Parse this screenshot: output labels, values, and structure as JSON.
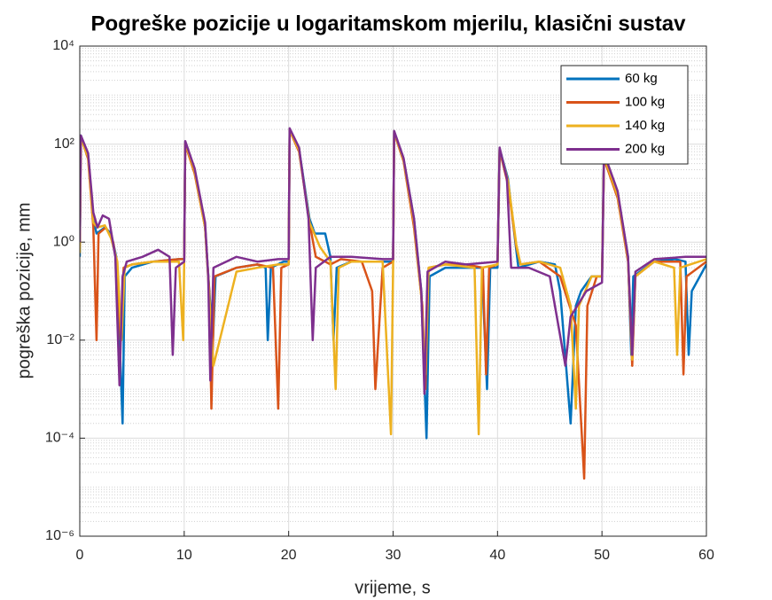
{
  "chart_data": {
    "type": "line",
    "title": "Pogreške pozicije u logaritamskom mjerilu, klasični sustav",
    "xlabel": "vrijeme, s",
    "ylabel": "pogreška pozicije, mm",
    "xlim": [
      0,
      60
    ],
    "ylim": [
      1e-06,
      10000
    ],
    "xticks": [
      0,
      10,
      20,
      30,
      40,
      50,
      60
    ],
    "yticks": [
      {
        "value": 1e-06,
        "label": "10⁻⁶"
      },
      {
        "value": 0.0001,
        "label": "10⁻⁴"
      },
      {
        "value": 0.01,
        "label": "10⁻²"
      },
      {
        "value": 1,
        "label": "10⁰"
      },
      {
        "value": 100,
        "label": "10²"
      },
      {
        "value": 10000,
        "label": "10⁴"
      }
    ],
    "log_y": true,
    "grid": true,
    "minor_grid": true,
    "legend": "northeast",
    "series": [
      {
        "name": "60 kg",
        "color": "#0072BD",
        "x": [
          0,
          0.1,
          0.8,
          1.3,
          1.6,
          2.4,
          3,
          3.5,
          3.9,
          4.1,
          4.3,
          5,
          7,
          9.5,
          10,
          10.1,
          11,
          12,
          12.5,
          12.7,
          13,
          15,
          17,
          17.8,
          18,
          18.3,
          19.5,
          20,
          20.1,
          21,
          22,
          22.5,
          23.5,
          24,
          24.3,
          24.6,
          26,
          29,
          30,
          30.1,
          31,
          32,
          32.7,
          33.2,
          33.5,
          35,
          37,
          38.5,
          39,
          39.3,
          40,
          40.2,
          41,
          41.7,
          42,
          44,
          45.5,
          46,
          47,
          47.5,
          48,
          49,
          50,
          50.2,
          51.5,
          52.5,
          52.8,
          53,
          55,
          57,
          58,
          58.3,
          58.6,
          60
        ],
        "values": [
          0.5,
          150,
          60,
          3,
          1.5,
          2,
          1.5,
          0.5,
          0.003,
          0.0002,
          0.2,
          0.3,
          0.4,
          0.45,
          0.45,
          110,
          30,
          2,
          0.05,
          0.005,
          0.2,
          0.3,
          0.35,
          0.3,
          0.01,
          0.3,
          0.4,
          0.4,
          200,
          80,
          3,
          1.5,
          1.5,
          0.5,
          0.01,
          0.3,
          0.4,
          0.4,
          0.4,
          180,
          50,
          3,
          0.1,
          0.0001,
          0.2,
          0.3,
          0.3,
          0.3,
          0.001,
          0.3,
          0.3,
          80,
          20,
          1,
          0.3,
          0.4,
          0.35,
          0.1,
          0.0002,
          0.05,
          0.1,
          0.2,
          0.2,
          60,
          10,
          0.5,
          0.005,
          0.2,
          0.4,
          0.45,
          0.4,
          0.005,
          0.1,
          0.35
        ]
      },
      {
        "name": "100 kg",
        "color": "#D95319",
        "x": [
          0,
          0.1,
          0.8,
          1.3,
          1.6,
          1.8,
          2.5,
          3.2,
          3.6,
          3.9,
          4.2,
          5,
          7,
          9.5,
          10,
          10.1,
          11,
          12,
          12.4,
          12.6,
          12.9,
          15,
          17,
          18.5,
          19,
          19.3,
          20,
          20.1,
          21,
          22,
          22.6,
          23.5,
          24,
          25,
          27,
          28,
          28.3,
          29,
          30,
          30.1,
          31,
          32,
          32.8,
          33.1,
          33.4,
          35,
          37,
          38.6,
          38.9,
          39.2,
          40,
          40.2,
          41,
          41.8,
          42.2,
          44,
          46,
          47.5,
          48.3,
          48.6,
          49.5,
          50,
          50.2,
          51.5,
          52.5,
          52.9,
          53.2,
          55,
          57.5,
          57.8,
          58.1,
          60
        ],
        "values": [
          0.8,
          140,
          50,
          2,
          0.01,
          1.5,
          2,
          1,
          0.3,
          0.01,
          0.3,
          0.35,
          0.4,
          0.45,
          0.45,
          100,
          25,
          2,
          0.1,
          0.0004,
          0.2,
          0.3,
          0.35,
          0.3,
          0.0004,
          0.3,
          0.35,
          190,
          70,
          2.5,
          0.5,
          0.4,
          0.35,
          0.45,
          0.4,
          0.1,
          0.001,
          0.3,
          0.4,
          170,
          45,
          2,
          0.05,
          0.001,
          0.3,
          0.35,
          0.35,
          0.3,
          0.002,
          0.3,
          0.35,
          75,
          15,
          0.8,
          0.35,
          0.4,
          0.2,
          0.02,
          1.5e-05,
          0.05,
          0.2,
          0.2,
          50,
          8,
          0.4,
          0.003,
          0.2,
          0.4,
          0.4,
          0.002,
          0.2,
          0.4
        ]
      },
      {
        "name": "140 kg",
        "color": "#EDB120",
        "x": [
          0,
          0.1,
          0.8,
          1.3,
          1.7,
          2.4,
          3,
          3.6,
          4,
          4.3,
          5,
          7,
          9.5,
          9.9,
          10,
          10.1,
          11,
          12,
          12.4,
          12.8,
          15,
          17,
          19,
          20,
          20.1,
          21,
          22,
          23,
          24,
          24.5,
          24.8,
          26,
          29,
          29.8,
          30,
          30.1,
          31,
          32,
          32.7,
          33.1,
          33.4,
          35,
          37.8,
          38.2,
          38.5,
          40,
          40.2,
          41,
          41.8,
          42.2,
          44,
          46,
          47,
          47.5,
          47.8,
          49,
          50,
          50.2,
          51.5,
          52.5,
          52.9,
          53.2,
          55,
          56.9,
          57.2,
          57.5,
          60
        ],
        "values": [
          0.6,
          130,
          55,
          2.5,
          2,
          2.2,
          1.2,
          0.4,
          0.01,
          0.3,
          0.35,
          0.4,
          0.4,
          0.01,
          0.4,
          105,
          28,
          2,
          0.08,
          0.003,
          0.25,
          0.3,
          0.35,
          0.35,
          195,
          75,
          2.5,
          0.8,
          0.4,
          0.001,
          0.3,
          0.4,
          0.4,
          0.00012,
          0.3,
          175,
          48,
          2.5,
          0.08,
          0.002,
          0.3,
          0.35,
          0.3,
          0.00012,
          0.3,
          0.35,
          78,
          18,
          0.9,
          0.35,
          0.4,
          0.3,
          0.05,
          0.0004,
          0.05,
          0.2,
          0.2,
          55,
          9,
          0.45,
          0.004,
          0.2,
          0.4,
          0.3,
          0.005,
          0.3,
          0.45
        ]
      },
      {
        "name": "200 kg",
        "color": "#7E2F8E",
        "x": [
          0,
          0.1,
          0.8,
          1.3,
          1.7,
          2.2,
          2.8,
          3.4,
          3.8,
          4.1,
          4.5,
          6,
          7.5,
          8.6,
          8.9,
          9.2,
          10,
          10.1,
          11,
          12,
          12.3,
          12.5,
          12.8,
          15,
          17,
          19,
          20,
          20.1,
          21,
          21.9,
          22.3,
          22.6,
          24,
          26,
          29,
          30,
          30.1,
          31,
          32,
          32.7,
          33,
          33.3,
          35,
          37,
          40,
          40.2,
          40.9,
          41.3,
          43,
          45,
          46.5,
          47,
          48.5,
          50,
          50.2,
          51.5,
          52.5,
          52.9,
          53.2,
          55,
          58,
          60
        ],
        "values": [
          1,
          150,
          65,
          4,
          2,
          3.5,
          3,
          0.5,
          0.0012,
          0.2,
          0.4,
          0.5,
          0.7,
          0.5,
          0.005,
          0.3,
          0.4,
          115,
          32,
          2.5,
          0.2,
          0.0015,
          0.3,
          0.5,
          0.4,
          0.45,
          0.45,
          210,
          85,
          3,
          0.01,
          0.3,
          0.5,
          0.5,
          0.45,
          0.45,
          185,
          52,
          3,
          0.1,
          0.0008,
          0.25,
          0.4,
          0.35,
          0.4,
          85,
          20,
          0.3,
          0.3,
          0.2,
          0.003,
          0.03,
          0.1,
          0.15,
          65,
          11,
          0.5,
          0.005,
          0.25,
          0.45,
          0.5,
          0.5
        ]
      }
    ]
  }
}
